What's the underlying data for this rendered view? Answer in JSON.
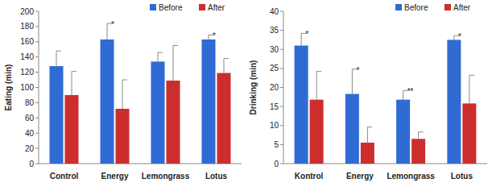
{
  "chart_data": [
    {
      "type": "bar",
      "ylabel": "Eating (min)",
      "categories": [
        "Control",
        "Energy",
        "Lemongrass",
        "Lotus"
      ],
      "series": [
        {
          "name": "Before",
          "color": "#2f6bd3",
          "values": [
            128,
            163,
            134,
            163
          ],
          "errors": [
            20,
            21,
            12,
            6
          ],
          "significance": [
            null,
            "*",
            null,
            "*"
          ]
        },
        {
          "name": "After",
          "color": "#cc2e2e",
          "values": [
            90,
            72,
            109,
            119
          ],
          "errors": [
            31,
            38,
            46,
            19
          ],
          "significance": [
            null,
            null,
            null,
            null
          ]
        }
      ],
      "ylim": [
        0,
        200
      ],
      "yticks": [
        0,
        20,
        40,
        60,
        80,
        100,
        120,
        140,
        160,
        180,
        200
      ],
      "grid": false,
      "legend": "top-right"
    },
    {
      "type": "bar",
      "ylabel": "Drinking (min)",
      "categories": [
        "Kontrol",
        "Energy",
        "Lemongrass",
        "Lotus"
      ],
      "series": [
        {
          "name": "Before",
          "color": "#2f6bd3",
          "values": [
            31,
            18.3,
            16.8,
            32.5
          ],
          "errors": [
            3.2,
            6.5,
            2.4,
            1.1
          ],
          "significance": [
            "*",
            "*",
            "**",
            "*"
          ]
        },
        {
          "name": "After",
          "color": "#cc2e2e",
          "values": [
            16.8,
            5.5,
            6.5,
            15.8
          ],
          "errors": [
            7.4,
            4.1,
            1.8,
            7.4
          ],
          "significance": [
            null,
            null,
            null,
            null
          ]
        }
      ],
      "ylim": [
        0,
        40
      ],
      "yticks": [
        0,
        5,
        10,
        15,
        20,
        25,
        30,
        35,
        40
      ],
      "grid": false,
      "legend": "top-right"
    }
  ]
}
